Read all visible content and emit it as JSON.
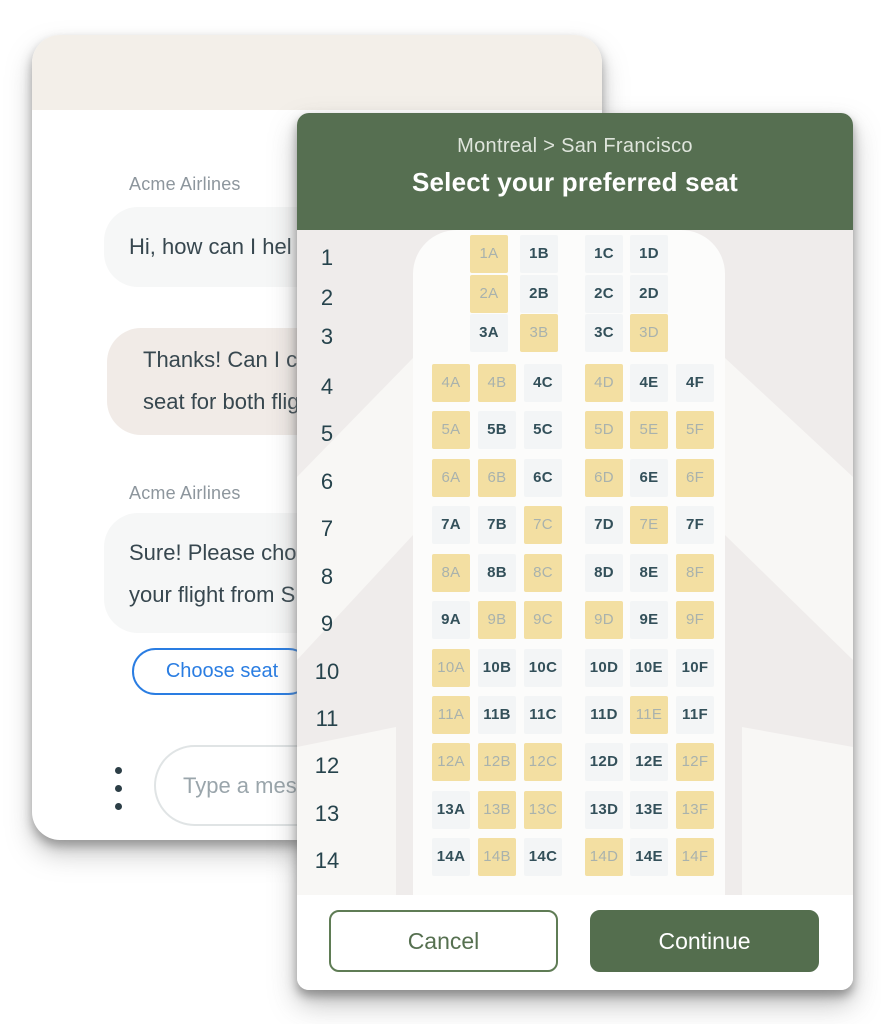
{
  "chat": {
    "brand": "Acme Airlines",
    "messages": [
      {
        "from": "agent",
        "label": "Acme Airlines",
        "lines": [
          "Hi, how can I hel"
        ]
      },
      {
        "from": "user",
        "lines": [
          "Thanks! Can I ch",
          "seat for both flig"
        ]
      },
      {
        "from": "agent",
        "label": "Acme Airlines",
        "lines": [
          "Sure! Please cho",
          "your flight from S"
        ]
      }
    ],
    "choose_seat_button": "Choose seat",
    "input_placeholder": "Type a mess",
    "overflow_menu_icon": "kebab-menu"
  },
  "modal": {
    "route": "Montreal > San Francisco",
    "title": "Select your preferred seat",
    "cancel_button": "Cancel",
    "continue_button": "Continue",
    "rows": [
      {
        "number": "1",
        "cabin": "business",
        "seats": [
          {
            "id": "1A",
            "status": "taken"
          },
          {
            "id": "1B",
            "status": "available"
          },
          {
            "id": "1C",
            "status": "available"
          },
          {
            "id": "1D",
            "status": "available"
          }
        ]
      },
      {
        "number": "2",
        "cabin": "business",
        "seats": [
          {
            "id": "2A",
            "status": "taken"
          },
          {
            "id": "2B",
            "status": "available"
          },
          {
            "id": "2C",
            "status": "available"
          },
          {
            "id": "2D",
            "status": "available"
          }
        ]
      },
      {
        "number": "3",
        "cabin": "business",
        "seats": [
          {
            "id": "3A",
            "status": "available"
          },
          {
            "id": "3B",
            "status": "taken"
          },
          {
            "id": "3C",
            "status": "available"
          },
          {
            "id": "3D",
            "status": "taken"
          }
        ]
      },
      {
        "number": "4",
        "cabin": "economy",
        "seats": [
          {
            "id": "4A",
            "status": "taken"
          },
          {
            "id": "4B",
            "status": "taken"
          },
          {
            "id": "4C",
            "status": "available"
          },
          {
            "id": "4D",
            "status": "taken"
          },
          {
            "id": "4E",
            "status": "available"
          },
          {
            "id": "4F",
            "status": "available"
          }
        ]
      },
      {
        "number": "5",
        "cabin": "economy",
        "seats": [
          {
            "id": "5A",
            "status": "taken"
          },
          {
            "id": "5B",
            "status": "available"
          },
          {
            "id": "5C",
            "status": "available"
          },
          {
            "id": "5D",
            "status": "taken"
          },
          {
            "id": "5E",
            "status": "taken"
          },
          {
            "id": "5F",
            "status": "taken"
          }
        ]
      },
      {
        "number": "6",
        "cabin": "economy",
        "seats": [
          {
            "id": "6A",
            "status": "taken"
          },
          {
            "id": "6B",
            "status": "taken"
          },
          {
            "id": "6C",
            "status": "available"
          },
          {
            "id": "6D",
            "status": "taken"
          },
          {
            "id": "6E",
            "status": "available"
          },
          {
            "id": "6F",
            "status": "taken"
          }
        ]
      },
      {
        "number": "7",
        "cabin": "economy",
        "seats": [
          {
            "id": "7A",
            "status": "available"
          },
          {
            "id": "7B",
            "status": "available"
          },
          {
            "id": "7C",
            "status": "taken"
          },
          {
            "id": "7D",
            "status": "available"
          },
          {
            "id": "7E",
            "status": "taken"
          },
          {
            "id": "7F",
            "status": "available"
          }
        ]
      },
      {
        "number": "8",
        "cabin": "economy",
        "seats": [
          {
            "id": "8A",
            "status": "taken"
          },
          {
            "id": "8B",
            "status": "available"
          },
          {
            "id": "8C",
            "status": "taken"
          },
          {
            "id": "8D",
            "status": "available"
          },
          {
            "id": "8E",
            "status": "available"
          },
          {
            "id": "8F",
            "status": "taken"
          }
        ]
      },
      {
        "number": "9",
        "cabin": "economy",
        "seats": [
          {
            "id": "9A",
            "status": "available"
          },
          {
            "id": "9B",
            "status": "taken"
          },
          {
            "id": "9C",
            "status": "taken"
          },
          {
            "id": "9D",
            "status": "taken"
          },
          {
            "id": "9E",
            "status": "available"
          },
          {
            "id": "9F",
            "status": "taken"
          }
        ]
      },
      {
        "number": "10",
        "cabin": "economy",
        "seats": [
          {
            "id": "10A",
            "status": "taken"
          },
          {
            "id": "10B",
            "status": "available"
          },
          {
            "id": "10C",
            "status": "available"
          },
          {
            "id": "10D",
            "status": "available"
          },
          {
            "id": "10E",
            "status": "available"
          },
          {
            "id": "10F",
            "status": "available"
          }
        ]
      },
      {
        "number": "11",
        "cabin": "economy",
        "seats": [
          {
            "id": "11A",
            "status": "taken"
          },
          {
            "id": "11B",
            "status": "available"
          },
          {
            "id": "11C",
            "status": "available"
          },
          {
            "id": "11D",
            "status": "available"
          },
          {
            "id": "11E",
            "status": "taken"
          },
          {
            "id": "11F",
            "status": "available"
          }
        ]
      },
      {
        "number": "12",
        "cabin": "economy",
        "seats": [
          {
            "id": "12A",
            "status": "taken"
          },
          {
            "id": "12B",
            "status": "taken"
          },
          {
            "id": "12C",
            "status": "taken"
          },
          {
            "id": "12D",
            "status": "available"
          },
          {
            "id": "12E",
            "status": "available"
          },
          {
            "id": "12F",
            "status": "taken"
          }
        ]
      },
      {
        "number": "13",
        "cabin": "economy",
        "seats": [
          {
            "id": "13A",
            "status": "available"
          },
          {
            "id": "13B",
            "status": "taken"
          },
          {
            "id": "13C",
            "status": "taken"
          },
          {
            "id": "13D",
            "status": "available"
          },
          {
            "id": "13E",
            "status": "available"
          },
          {
            "id": "13F",
            "status": "taken"
          }
        ]
      },
      {
        "number": "14",
        "cabin": "economy",
        "seats": [
          {
            "id": "14A",
            "status": "available"
          },
          {
            "id": "14B",
            "status": "taken"
          },
          {
            "id": "14C",
            "status": "available"
          },
          {
            "id": "14D",
            "status": "taken"
          },
          {
            "id": "14E",
            "status": "available"
          },
          {
            "id": "14F",
            "status": "taken"
          }
        ]
      }
    ]
  },
  "colors": {
    "header_green": "#566f51",
    "continue_green": "#546e4e",
    "seat_taken_yellow": "#f3dfa2",
    "seat_available_gray": "#f3f5f6",
    "link_blue": "#2a7de2",
    "chat_topbar_beige": "#f3efe9",
    "user_bubble": "#f1ebe7",
    "agent_bubble": "#f6f7f7"
  }
}
